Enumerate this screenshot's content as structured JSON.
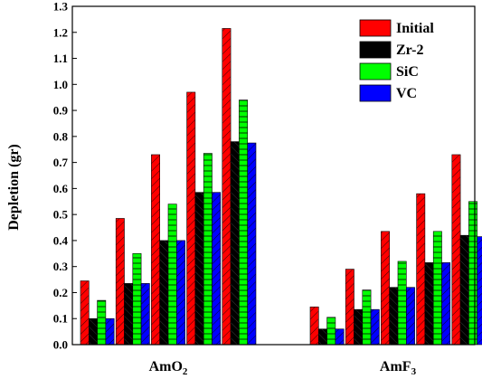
{
  "chart_data": {
    "type": "bar",
    "ylabel": "Depletion (gr)",
    "ylim": [
      0,
      1.3
    ],
    "yticks": [
      "0.0",
      "0.1",
      "0.2",
      "0.3",
      "0.4",
      "0.5",
      "0.6",
      "0.7",
      "0.8",
      "0.9",
      "1.0",
      "1.1",
      "1.2",
      "1.3"
    ],
    "legend_position": "top-right",
    "categories": [
      {
        "label_base": "AmO",
        "label_sub": "2"
      },
      {
        "label_base": "AmF",
        "label_sub": "3"
      }
    ],
    "series": [
      {
        "name": "Initial",
        "color": "#ff0000"
      },
      {
        "name": "Zr-2",
        "color": "#000000"
      },
      {
        "name": "SiC",
        "color": "#00ff00"
      },
      {
        "name": "VC",
        "color": "#0000ff"
      }
    ],
    "groups": [
      [
        [
          0.245,
          0.1,
          0.17,
          0.1
        ],
        [
          0.485,
          0.235,
          0.35,
          0.235
        ],
        [
          0.73,
          0.4,
          0.54,
          0.4
        ],
        [
          0.97,
          0.585,
          0.735,
          0.585
        ],
        [
          1.215,
          0.78,
          0.94,
          0.775
        ]
      ],
      [
        [
          0.145,
          0.06,
          0.105,
          0.06
        ],
        [
          0.29,
          0.135,
          0.21,
          0.135
        ],
        [
          0.435,
          0.22,
          0.32,
          0.22
        ],
        [
          0.58,
          0.315,
          0.435,
          0.315
        ],
        [
          0.73,
          0.42,
          0.55,
          0.415
        ]
      ]
    ]
  }
}
